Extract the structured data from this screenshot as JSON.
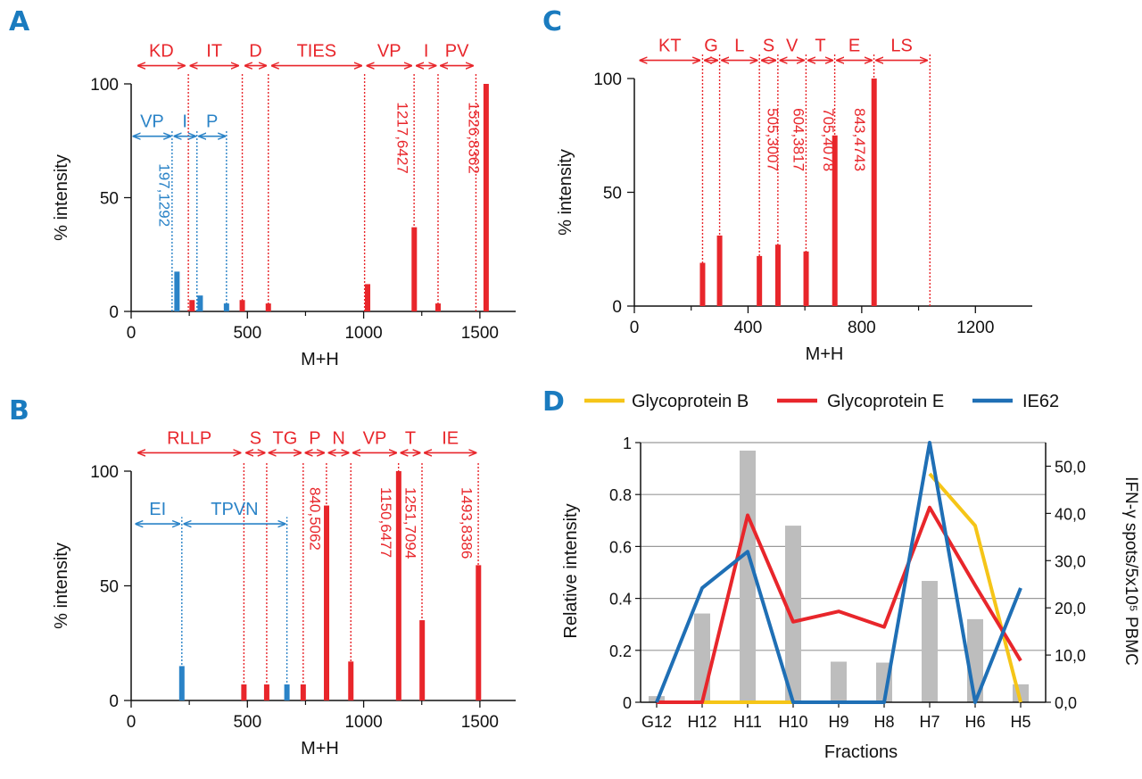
{
  "colors": {
    "red": "#e8262b",
    "blue": "#2a83c7",
    "gray": "#bdbdbd",
    "yellow": "#f5c518",
    "dblue": "#1f6fb5",
    "axis": "#111111",
    "grid": "#9a9a9a"
  },
  "chart_data": [
    {
      "id": "A",
      "type": "bar",
      "panel_label": "A",
      "xlabel": "M+H",
      "ylabel": "% intensity",
      "xlim": [
        0,
        1700
      ],
      "ylim": [
        0,
        100
      ],
      "xticks": [
        0,
        500,
        1000,
        1500
      ],
      "yticks": [
        0,
        50,
        100
      ],
      "peaks": [
        {
          "x": 197.1292,
          "y": 17.5,
          "color": "blue"
        },
        {
          "x": 262,
          "y": 5,
          "color": "red"
        },
        {
          "x": 297,
          "y": 7,
          "color": "blue"
        },
        {
          "x": 410,
          "y": 3.5,
          "color": "blue"
        },
        {
          "x": 478,
          "y": 5,
          "color": "red"
        },
        {
          "x": 590,
          "y": 3.5,
          "color": "red"
        },
        {
          "x": 1017,
          "y": 12,
          "color": "red"
        },
        {
          "x": 1217.6427,
          "y": 37,
          "color": "red"
        },
        {
          "x": 1320,
          "y": 3.5,
          "color": "red"
        },
        {
          "x": 1526.8362,
          "y": 100,
          "color": "red"
        }
      ],
      "dotted": [
        {
          "x": 246,
          "top": 105,
          "color": "red"
        },
        {
          "x": 478,
          "top": 105,
          "color": "red"
        },
        {
          "x": 590,
          "top": 105,
          "color": "red"
        },
        {
          "x": 1004,
          "top": 105,
          "color": "red"
        },
        {
          "x": 1217,
          "top": 105,
          "color": "red"
        },
        {
          "x": 1320,
          "top": 105,
          "color": "red"
        },
        {
          "x": 1483,
          "top": 105,
          "color": "red"
        },
        {
          "x": 176,
          "top": 80,
          "color": "blue"
        },
        {
          "x": 283,
          "top": 80,
          "color": "blue"
        },
        {
          "x": 410,
          "top": 80,
          "color": "blue"
        }
      ],
      "annotations": [
        {
          "label": "KD",
          "from": 30,
          "to": 230,
          "y": 108,
          "color": "red"
        },
        {
          "label": "IT",
          "from": 255,
          "to": 460,
          "y": 108,
          "color": "red"
        },
        {
          "label": "D",
          "from": 490,
          "to": 580,
          "y": 108,
          "color": "red"
        },
        {
          "label": "TIES",
          "from": 605,
          "to": 990,
          "y": 108,
          "color": "red"
        },
        {
          "label": "VP",
          "from": 1015,
          "to": 1205,
          "y": 108,
          "color": "red"
        },
        {
          "label": "I",
          "from": 1228,
          "to": 1310,
          "y": 108,
          "color": "red"
        },
        {
          "label": "PV",
          "from": 1332,
          "to": 1470,
          "y": 108,
          "color": "red"
        },
        {
          "label": "VP",
          "from": 10,
          "to": 170,
          "y": 77,
          "color": "blue"
        },
        {
          "label": "I",
          "from": 186,
          "to": 276,
          "y": 77,
          "color": "blue"
        },
        {
          "label": "P",
          "from": 292,
          "to": 404,
          "y": 77,
          "color": "blue"
        }
      ],
      "mass_labels": [
        {
          "text": "197,1292",
          "x": 120,
          "y": 65,
          "color": "blue"
        },
        {
          "text": "1217,6427",
          "x": 1145,
          "y": 92,
          "color": "red"
        },
        {
          "text": "1526,8362",
          "x": 1453,
          "y": 92,
          "color": "red"
        }
      ]
    },
    {
      "id": "B",
      "type": "bar",
      "panel_label": "B",
      "xlabel": "M+H",
      "ylabel": "% intensity",
      "xlim": [
        0,
        1700
      ],
      "ylim": [
        0,
        100
      ],
      "xticks": [
        0,
        500,
        1000,
        1500
      ],
      "yticks": [
        0,
        50,
        100
      ],
      "peaks": [
        {
          "x": 218,
          "y": 15,
          "color": "blue"
        },
        {
          "x": 485,
          "y": 7,
          "color": "red"
        },
        {
          "x": 583,
          "y": 7,
          "color": "red"
        },
        {
          "x": 670,
          "y": 7,
          "color": "blue"
        },
        {
          "x": 740,
          "y": 7,
          "color": "red"
        },
        {
          "x": 840.5062,
          "y": 85,
          "color": "red"
        },
        {
          "x": 945,
          "y": 17,
          "color": "red"
        },
        {
          "x": 1150.6477,
          "y": 100,
          "color": "red"
        },
        {
          "x": 1251.7094,
          "y": 35,
          "color": "red"
        },
        {
          "x": 1493.8386,
          "y": 59,
          "color": "red"
        }
      ],
      "dotted": [
        {
          "x": 485,
          "top": 104,
          "color": "red"
        },
        {
          "x": 583,
          "top": 104,
          "color": "red"
        },
        {
          "x": 740,
          "top": 104,
          "color": "red"
        },
        {
          "x": 840,
          "top": 104,
          "color": "red"
        },
        {
          "x": 945,
          "top": 104,
          "color": "red"
        },
        {
          "x": 1150,
          "top": 104,
          "color": "red"
        },
        {
          "x": 1251,
          "top": 104,
          "color": "red"
        },
        {
          "x": 1493,
          "top": 104,
          "color": "red"
        },
        {
          "x": 218,
          "top": 80,
          "color": "blue"
        },
        {
          "x": 670,
          "top": 80,
          "color": "blue"
        }
      ],
      "annotations": [
        {
          "label": "RLLP",
          "from": 30,
          "to": 470,
          "y": 108,
          "color": "red"
        },
        {
          "label": "S",
          "from": 495,
          "to": 575,
          "y": 108,
          "color": "red"
        },
        {
          "label": "TG",
          "from": 593,
          "to": 730,
          "y": 108,
          "color": "red"
        },
        {
          "label": "P",
          "from": 750,
          "to": 830,
          "y": 108,
          "color": "red"
        },
        {
          "label": "N",
          "from": 850,
          "to": 935,
          "y": 108,
          "color": "red"
        },
        {
          "label": "VP",
          "from": 955,
          "to": 1140,
          "y": 108,
          "color": "red"
        },
        {
          "label": "T",
          "from": 1160,
          "to": 1242,
          "y": 108,
          "color": "red"
        },
        {
          "label": "IE",
          "from": 1262,
          "to": 1483,
          "y": 108,
          "color": "red"
        },
        {
          "label": "EI",
          "from": 20,
          "to": 208,
          "y": 77,
          "color": "blue"
        },
        {
          "label": "TPVN",
          "from": 228,
          "to": 662,
          "y": 77,
          "color": "blue"
        }
      ],
      "mass_labels": [
        {
          "text": "840,5062",
          "x": 770,
          "y": 93,
          "color": "red"
        },
        {
          "text": "1150,6477",
          "x": 1075,
          "y": 93,
          "color": "red"
        },
        {
          "text": "1251,7094",
          "x": 1180,
          "y": 93,
          "color": "red"
        },
        {
          "text": "1493,8386",
          "x": 1422,
          "y": 93,
          "color": "red"
        }
      ]
    },
    {
      "id": "C",
      "type": "bar",
      "panel_label": "C",
      "xlabel": "M+H",
      "ylabel": "% intensity",
      "xlim": [
        0,
        1400
      ],
      "ylim": [
        0,
        100
      ],
      "xticks": [
        0,
        400,
        800,
        1200
      ],
      "yticks": [
        0,
        50,
        100
      ],
      "peaks": [
        {
          "x": 240,
          "y": 19,
          "color": "red"
        },
        {
          "x": 300,
          "y": 31,
          "color": "red"
        },
        {
          "x": 440,
          "y": 22,
          "color": "red"
        },
        {
          "x": 505.3007,
          "y": 27,
          "color": "red"
        },
        {
          "x": 604.3817,
          "y": 24,
          "color": "red"
        },
        {
          "x": 705.4078,
          "y": 75,
          "color": "red"
        },
        {
          "x": 843.4743,
          "y": 100,
          "color": "red"
        }
      ],
      "dotted": [
        {
          "x": 240,
          "top": 111,
          "color": "red"
        },
        {
          "x": 300,
          "top": 111,
          "color": "red"
        },
        {
          "x": 440,
          "top": 111,
          "color": "red"
        },
        {
          "x": 505,
          "top": 111,
          "color": "red"
        },
        {
          "x": 604,
          "top": 111,
          "color": "red"
        },
        {
          "x": 705,
          "top": 111,
          "color": "red"
        },
        {
          "x": 843,
          "top": 111,
          "color": "red"
        },
        {
          "x": 1040,
          "top": 111,
          "color": "red"
        }
      ],
      "annotations": [
        {
          "label": "KT",
          "from": 20,
          "to": 230,
          "y": 108,
          "color": "red"
        },
        {
          "label": "G",
          "from": 248,
          "to": 292,
          "y": 108,
          "color": "red"
        },
        {
          "label": "L",
          "from": 308,
          "to": 432,
          "y": 108,
          "color": "red"
        },
        {
          "label": "S",
          "from": 448,
          "to": 497,
          "y": 108,
          "color": "red"
        },
        {
          "label": "V",
          "from": 513,
          "to": 596,
          "y": 108,
          "color": "red"
        },
        {
          "label": "T",
          "from": 612,
          "to": 697,
          "y": 108,
          "color": "red"
        },
        {
          "label": "E",
          "from": 713,
          "to": 835,
          "y": 108,
          "color": "red"
        },
        {
          "label": "LS",
          "from": 851,
          "to": 1030,
          "y": 108,
          "color": "red"
        }
      ],
      "mass_labels": [
        {
          "text": "505,3007",
          "x": 470,
          "y": 87,
          "color": "red"
        },
        {
          "text": "604,3817",
          "x": 560,
          "y": 87,
          "color": "red"
        },
        {
          "text": "705,4078",
          "x": 665,
          "y": 87,
          "color": "red"
        },
        {
          "text": "843,4743",
          "x": 775,
          "y": 87,
          "color": "red"
        }
      ]
    },
    {
      "id": "D",
      "type": "line",
      "panel_label": "D",
      "xlabel": "Fractions",
      "ylabel": "Relative intensity",
      "y2label": "IFN-γ spots/5x10⁵ PBMC",
      "categories": [
        "G12",
        "H12",
        "H11",
        "H10",
        "H9",
        "H8",
        "H7",
        "H6",
        "H5"
      ],
      "ylim": [
        0,
        1
      ],
      "yticks": [
        "0",
        "0.2",
        "0.4",
        "0.6",
        "0.8",
        "1"
      ],
      "y2lim": [
        0,
        55
      ],
      "y2ticks": [
        "0,0",
        "10,0",
        "20,0",
        "30,0",
        "40,0",
        "50,0"
      ],
      "bars": {
        "name": "IFN-γ spots",
        "values": [
          1.3,
          18.8,
          53.3,
          37.4,
          8.6,
          8.4,
          25.7,
          17.6,
          3.8
        ]
      },
      "series": [
        {
          "name": "Glycoprotein B",
          "color": "yellow",
          "values": [
            0,
            0,
            0,
            0,
            null,
            null,
            0.88,
            0.68,
            0
          ]
        },
        {
          "name": "Glycoprotein E",
          "color": "red",
          "values": [
            0,
            0,
            0.72,
            0.31,
            0.35,
            0.29,
            0.75,
            0.45,
            0.16
          ]
        },
        {
          "name": "IE62",
          "color": "dblue",
          "values": [
            0,
            0.44,
            0.58,
            0,
            0,
            0,
            1.0,
            0,
            0.44
          ]
        }
      ]
    }
  ]
}
